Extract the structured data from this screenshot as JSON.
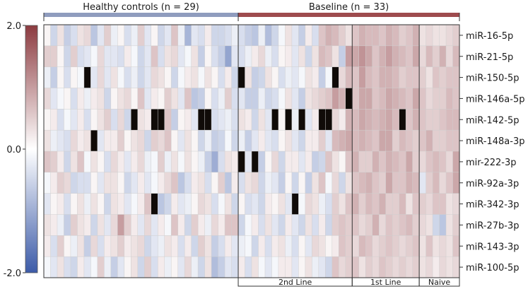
{
  "chart_data": {
    "type": "heatmap",
    "groups_top": [
      {
        "label": "Healthy controls (n = 29)",
        "count": 29,
        "color": "#8f9cbe"
      },
      {
        "label": "Baseline (n = 33)",
        "count": 33,
        "color": "#9e4b4e"
      }
    ],
    "groups_bottom": [
      {
        "label": "2nd Line",
        "start": 29,
        "count": 17
      },
      {
        "label": "1st Line",
        "start": 46,
        "count": 10
      },
      {
        "label": "Naive",
        "start": 56,
        "count": 6
      }
    ],
    "rows": [
      "miR-16-5p",
      "miR-21-5p",
      "miR-150-5p",
      "miR-146a-5p",
      "miR-142-5p",
      "miR-148a-3p",
      "mir-222-3p",
      "miR-92a-3p",
      "miR-342-3p",
      "miR-27b-3p",
      "miR-143-3p",
      "miR-100-5p"
    ],
    "scale": {
      "min": -2.0,
      "max": 2.0,
      "ticks": [
        "2.0",
        "0.0",
        "-2.0"
      ],
      "low_color": "#3c5ba8",
      "mid_color": "#ffffff",
      "high_color": "#8c3b40",
      "missing_color": "#100b08"
    },
    "values": [
      [
        0.1,
        -0.5,
        0.3,
        -0.6,
        -0.4,
        0.3,
        0.4,
        -0.7,
        -0.3,
        0.5,
        -0.2,
        0.1,
        -0.4,
        -0.2,
        0.5,
        -0.3,
        0.1,
        -0.5,
        -0.3,
        0.6,
        -0.2,
        -0.9,
        -0.3,
        -0.4,
        0.2,
        -0.5,
        -0.5,
        -0.4,
        -0.2,
        -0.4,
        -0.6,
        -0.7,
        -0.2,
        -0.8,
        -0.5,
        -0.1,
        0.3,
        -0.3,
        -0.6,
        0.2,
        -0.4,
        0.6,
        0.8,
        0.7,
        0.5,
        0.3,
        0.6,
        0.8,
        0.7,
        0.7,
        0.6,
        0.8,
        0.7,
        0.5,
        0.6,
        0.8,
        0.3,
        0.4,
        0.3,
        0.3,
        0.4,
        0.5
      ],
      [
        0.5,
        0.5,
        0.1,
        -0.5,
        0.5,
        -0.4,
        -0.3,
        -0.1,
        0.4,
        -0.3,
        -0.3,
        -0.4,
        0.2,
        -0.1,
        -0.5,
        -0.3,
        0.6,
        -0.4,
        0.3,
        0.4,
        -0.3,
        -0.1,
        0.3,
        -0.6,
        0.1,
        -0.4,
        -0.6,
        -1.1,
        -0.3,
        -0.4,
        -0.2,
        0.2,
        0.4,
        -0.2,
        -0.4,
        0.1,
        0.2,
        -0.3,
        0.3,
        -0.5,
        0.3,
        0.7,
        0.6,
        0.3,
        -0.6,
        1.0,
        0.9,
        1.1,
        0.9,
        0.6,
        0.8,
        1.0,
        0.8,
        0.7,
        0.6,
        0.9,
        0.4,
        0.7,
        0.5,
        0.8,
        0.4,
        0.7
      ],
      [
        -0.2,
        -0.6,
        0.1,
        -0.4,
        0.1,
        -0.1,
        "x",
        -0.3,
        0.4,
        -0.3,
        0.3,
        -0.1,
        -0.4,
        -0.2,
        -0.5,
        -0.3,
        0.4,
        0.3,
        0.1,
        -0.5,
        -0.1,
        0.2,
        0.3,
        -0.1,
        0.3,
        0.1,
        -0.4,
        0.2,
        -0.5,
        "x",
        0.3,
        -0.6,
        -0.5,
        0.3,
        0.1,
        -0.4,
        -0.2,
        -0.3,
        -0.1,
        0.3,
        0.2,
        -0.6,
        -0.1,
        "x",
        0.4,
        0.7,
        0.6,
        1.0,
        0.7,
        0.6,
        0.8,
        0.8,
        0.7,
        0.5,
        0.6,
        0.6,
        0.5,
        0.3,
        0.6,
        0.5,
        0.6,
        0.6
      ],
      [
        0.4,
        -0.3,
        -0.1,
        0.1,
        -0.4,
        0.2,
        -0.2,
        0.2,
        0.3,
        -0.5,
        0.1,
        0.3,
        0.4,
        0.1,
        0.6,
        -0.3,
        0.2,
        0.1,
        0.5,
        0.3,
        -0.3,
        0.6,
        -0.7,
        -0.6,
        0.1,
        -0.4,
        -0.2,
        0.5,
        -0.4,
        -0.3,
        -0.6,
        -0.6,
        -0.2,
        -0.5,
        -0.4,
        -0.1,
        0.3,
        -0.3,
        -0.6,
        0.3,
        0.4,
        0.5,
        0.6,
        1.0,
        0.8,
        "x",
        0.6,
        0.9,
        0.9,
        0.6,
        0.7,
        0.9,
        0.8,
        0.7,
        0.6,
        0.9,
        0.6,
        0.4,
        0.5,
        0.5,
        0.7,
        0.6
      ],
      [
        0.1,
        0.2,
        -0.4,
        -0.1,
        -0.3,
        0.2,
        -0.4,
        0.1,
        0.3,
        0.5,
        -0.4,
        0.4,
        -0.5,
        "x",
        0.3,
        0.2,
        "x",
        "x",
        0.6,
        -0.6,
        0.1,
        0.2,
        -0.3,
        "x",
        "x",
        -0.4,
        -0.3,
        -0.2,
        -0.4,
        0.3,
        0.2,
        -0.5,
        0.3,
        -0.3,
        "x",
        0.1,
        "x",
        -0.2,
        "x",
        -0.3,
        0.2,
        "x",
        "x",
        0.4,
        0.2,
        0.8,
        0.7,
        0.9,
        0.8,
        0.7,
        0.8,
        0.9,
        0.7,
        "x",
        0.6,
        0.8,
        0.6,
        0.5,
        0.5,
        0.6,
        0.7,
        0.7
      ],
      [
        0.3,
        -0.2,
        -0.3,
        -0.4,
        0.4,
        0.2,
        0.3,
        "x",
        -0.3,
        0.2,
        0.2,
        0.5,
        0.1,
        0.3,
        0.4,
        -0.5,
        0.5,
        0.4,
        0.6,
        0.1,
        -0.3,
        0.3,
        0.1,
        -0.5,
        -0.2,
        -0.6,
        -0.5,
        -0.1,
        -0.5,
        -0.2,
        -0.6,
        -0.3,
        0.2,
        -0.3,
        -0.4,
        0.1,
        0.3,
        -0.3,
        -0.5,
        0.2,
        0.2,
        0.5,
        -0.3,
        0.7,
        0.8,
        0.9,
        0.7,
        0.8,
        0.7,
        0.6,
        0.9,
        0.9,
        0.5,
        0.7,
        0.6,
        0.5,
        0.6,
        0.8,
        0.5,
        0.5,
        0.6,
        0.6
      ],
      [
        0.6,
        0.5,
        0.2,
        -0.5,
        0.3,
        0.6,
        -0.1,
        0.3,
        0.1,
        -0.4,
        0.4,
        0.2,
        -0.3,
        0.2,
        0.4,
        -0.2,
        -0.1,
        0.5,
        -0.2,
        0.3,
        -0.1,
        0.3,
        0.1,
        -0.2,
        -0.6,
        -1.0,
        -0.4,
        0.3,
        0.2,
        "x",
        -0.3,
        "x",
        -0.6,
        0.1,
        0.4,
        -0.5,
        0.2,
        0.2,
        -0.3,
        0.2,
        -0.6,
        -0.5,
        0.6,
        0.3,
        0.1,
        0.6,
        0.8,
        0.5,
        0.5,
        0.8,
        0.6,
        0.8,
        0.7,
        0.6,
        0.9,
        0.5,
        0.4,
        0.6,
        0.7,
        0.6,
        0.4,
        0.9
      ],
      [
        -0.1,
        0.2,
        0.5,
        0.4,
        -0.5,
        -0.4,
        -0.4,
        0.1,
        -0.3,
        0.3,
        0.3,
        0.1,
        -0.5,
        -0.3,
        0.2,
        -0.3,
        -0.1,
        0.2,
        0.4,
        0.6,
        -0.7,
        -0.4,
        0.2,
        0.3,
        -0.4,
        0.1,
        0.5,
        -0.7,
        0.2,
        -0.4,
        0.3,
        0.4,
        -0.5,
        -0.2,
        -0.3,
        -0.6,
        0.1,
        -0.5,
        0.1,
        -0.6,
        0.3,
        0.6,
        -0.1,
        0.4,
        -0.5,
        0.3,
        0.6,
        0.7,
        0.8,
        0.6,
        0.5,
        0.9,
        0.6,
        0.6,
        0.8,
        0.7,
        -0.3,
        0.5,
        0.7,
        0.4,
        0.6,
        0.9
      ],
      [
        -0.3,
        0.1,
        0.2,
        -0.4,
        0.1,
        0.3,
        -0.2,
        0.3,
        0.1,
        -0.5,
        0.3,
        0.2,
        -0.3,
        -0.1,
        0.2,
        0.6,
        "x",
        -0.7,
        -0.5,
        0.2,
        -0.3,
        -0.2,
        0.1,
        0.4,
        0.3,
        -0.4,
        -0.1,
        0.3,
        -0.5,
        0.1,
        -0.4,
        -0.3,
        -0.5,
        0.2,
        0.1,
        0.3,
        -0.3,
        "x",
        -0.1,
        0.4,
        0.3,
        -0.2,
        -0.4,
        0.5,
        0.3,
        0.6,
        0.8,
        0.5,
        0.7,
        0.6,
        0.8,
        0.5,
        0.5,
        0.7,
        0.3,
        0.6,
        0.5,
        0.4,
        0.6,
        0.6,
        0.3,
        0.4
      ],
      [
        0.3,
        0.2,
        -0.2,
        -0.6,
        0.5,
        0.3,
        0.2,
        -0.5,
        0.3,
        -0.3,
        0.4,
        1.0,
        0.5,
        0.2,
        -0.3,
        0.4,
        -0.3,
        0.2,
        -0.1,
        0.6,
        0.2,
        -0.5,
        0.5,
        0.2,
        -0.2,
        0.4,
        0.2,
        0.6,
        0.6,
        -0.5,
        -0.1,
        0.2,
        -0.4,
        0.3,
        -0.3,
        -0.5,
        0.2,
        -0.3,
        -0.5,
        0.3,
        -0.4,
        0.2,
        -0.5,
        0.5,
        0.6,
        0.5,
        0.6,
        0.4,
        0.5,
        0.8,
        0.4,
        0.6,
        0.5,
        0.6,
        0.7,
        0.5,
        0.4,
        0.3,
        -0.5,
        -0.7,
        0.3,
        0.5
      ],
      [
        0.2,
        -0.4,
        0.5,
        0.1,
        -0.2,
        0.3,
        -0.6,
        0.4,
        -0.4,
        0.2,
        0.3,
        0.5,
        0.2,
        0.3,
        0.4,
        -0.5,
        -0.3,
        -0.2,
        0.3,
        0.2,
        -0.4,
        0.2,
        -0.5,
        0.5,
        0.3,
        -0.6,
        -0.4,
        0.2,
        -0.3,
        -0.2,
        -0.1,
        -0.5,
        0.2,
        -0.4,
        0.2,
        0.3,
        -0.2,
        -0.4,
        0.1,
        -0.3,
        0.4,
        0.3,
        0.1,
        0.2,
        0.6,
        0.5,
        0.4,
        0.7,
        0.6,
        0.4,
        0.5,
        0.6,
        0.5,
        0.4,
        0.5,
        0.6,
        0.3,
        0.6,
        0.3,
        0.4,
        0.3,
        0.6
      ],
      [
        -0.1,
        -0.3,
        0.3,
        -0.4,
        -0.5,
        0.2,
        -0.3,
        -0.1,
        0.5,
        -0.2,
        -0.6,
        -0.3,
        0.1,
        0.3,
        -0.5,
        0.5,
        -0.4,
        0.2,
        -0.2,
        0.1,
        -0.3,
        0.4,
        -0.2,
        -0.5,
        0.3,
        -0.8,
        -0.6,
        -0.3,
        -0.4,
        0.2,
        -0.4,
        0.3,
        -0.1,
        -0.3,
        -0.1,
        0.2,
        0.2,
        -0.3,
        0.1,
        0.3,
        -0.2,
        -0.3,
        -0.5,
        0.6,
        0.4,
        0.5,
        0.6,
        0.3,
        0.5,
        0.4,
        0.6,
        0.5,
        0.4,
        0.5,
        0.4,
        0.5,
        0.3,
        0.4,
        0.2,
        0.4,
        0.3,
        0.4
      ]
    ]
  }
}
